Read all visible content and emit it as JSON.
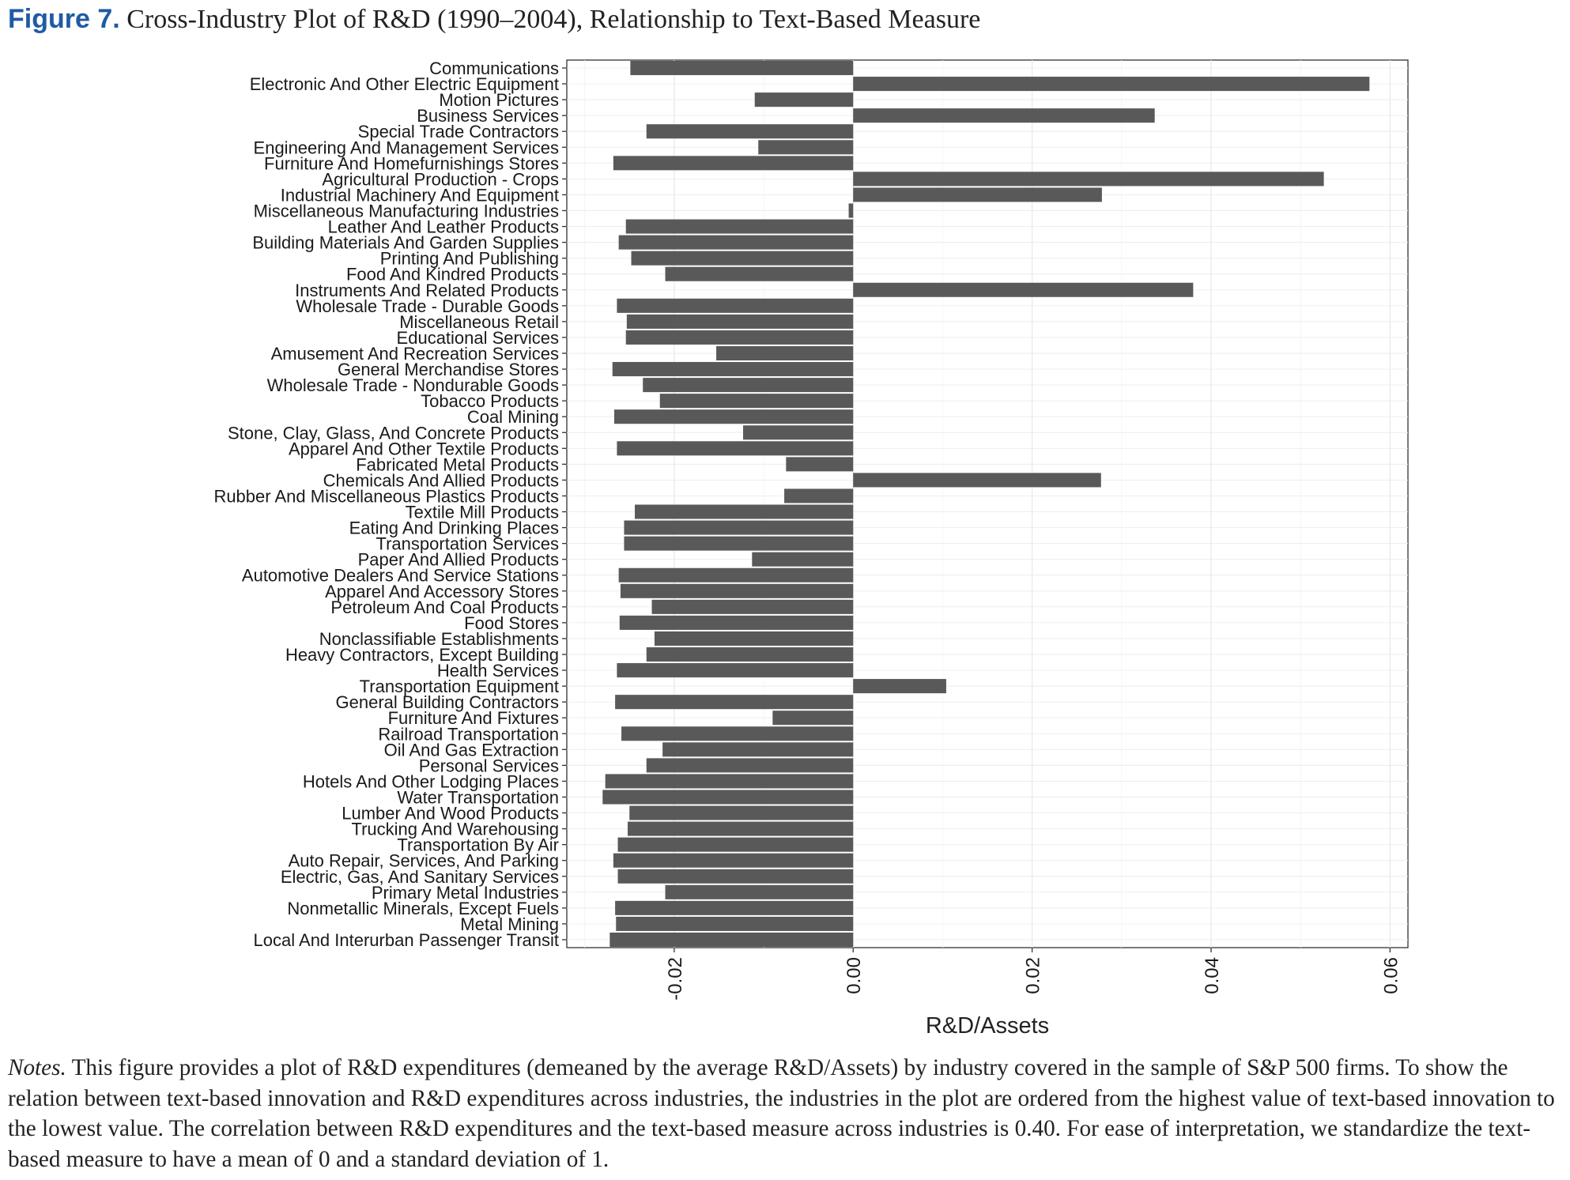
{
  "figure": {
    "label": "Figure 7.",
    "title": "Cross-Industry Plot of R&D (1990–2004), Relationship to Text-Based Measure"
  },
  "notes": {
    "label": "Notes.",
    "text": "This figure provides a plot of R&D expenditures (demeaned by the average R&D/Assets) by industry covered in the sample of S&P 500 firms. To show the relation between text-based innovation and R&D expenditures across industries, the industries in the plot are ordered from the highest value of text-based innovation to the lowest value. The correlation between R&D expenditures and the text-based measure across industries is 0.40. For ease of interpretation, we standardize the text-based measure to have a mean of 0 and a standard deviation of 1."
  },
  "chart_data": {
    "type": "bar",
    "orientation": "horizontal",
    "xlabel": "R&D/Assets",
    "ylabel": "",
    "xlim": [
      -0.032,
      0.062
    ],
    "xticks": [
      -0.02,
      0.0,
      0.02,
      0.04,
      0.06
    ],
    "xtick_labels": [
      "-0.02",
      "0.00",
      "0.02",
      "0.04",
      "0.06"
    ],
    "grid": true,
    "bar_color": "#595959",
    "categories": [
      "Communications",
      "Electronic And Other Electric Equipment",
      "Motion Pictures",
      "Business Services",
      "Special Trade Contractors",
      "Engineering And Management Services",
      "Furniture And Homefurnishings Stores",
      "Agricultural Production - Crops",
      "Industrial Machinery And Equipment",
      "Miscellaneous Manufacturing Industries",
      "Leather And Leather Products",
      "Building Materials And Garden Supplies",
      "Printing And Publishing",
      "Food And Kindred Products",
      "Instruments And Related Products",
      "Wholesale Trade - Durable Goods",
      "Miscellaneous Retail",
      "Educational Services",
      "Amusement And Recreation Services",
      "General Merchandise Stores",
      "Wholesale Trade - Nondurable Goods",
      "Tobacco Products",
      "Coal Mining",
      "Stone, Clay, Glass, And Concrete Products",
      "Apparel And Other Textile Products",
      "Fabricated Metal Products",
      "Chemicals And Allied Products",
      "Rubber And Miscellaneous Plastics Products",
      "Textile Mill Products",
      "Eating And Drinking Places",
      "Transportation Services",
      "Paper And Allied Products",
      "Automotive Dealers And Service Stations",
      "Apparel And Accessory Stores",
      "Petroleum And Coal Products",
      "Food Stores",
      "Nonclassifiable Establishments",
      "Heavy Contractors, Except Building",
      "Health Services",
      "Transportation Equipment",
      "General Building Contractors",
      "Furniture And Fixtures",
      "Railroad Transportation",
      "Oil And Gas Extraction",
      "Personal Services",
      "Hotels And Other Lodging Places",
      "Water Transportation",
      "Lumber And Wood Products",
      "Trucking And Warehousing",
      "Transportation By Air",
      "Auto Repair, Services, And Parking",
      "Electric, Gas, And Sanitary Services",
      "Primary Metal Industries",
      "Nonmetallic Minerals, Except Fuels",
      "Metal Mining",
      "Local And Interurban Passenger Transit"
    ],
    "values": [
      -0.0249,
      0.0577,
      -0.011,
      0.0337,
      -0.0231,
      -0.0106,
      -0.0268,
      0.0526,
      0.0278,
      -0.0005,
      -0.0254,
      -0.0262,
      -0.0248,
      -0.021,
      0.038,
      -0.0264,
      -0.0253,
      -0.0254,
      -0.0153,
      -0.0269,
      -0.0235,
      -0.0216,
      -0.0267,
      -0.0123,
      -0.0264,
      -0.0075,
      0.0277,
      -0.0077,
      -0.0244,
      -0.0256,
      -0.0256,
      -0.0113,
      -0.0262,
      -0.026,
      -0.0225,
      -0.0261,
      -0.0222,
      -0.0231,
      -0.0264,
      0.0104,
      -0.0266,
      -0.009,
      -0.0259,
      -0.0213,
      -0.0231,
      -0.0277,
      -0.028,
      -0.025,
      -0.0252,
      -0.0263,
      -0.0268,
      -0.0263,
      -0.021,
      -0.0266,
      -0.0265,
      -0.0272
    ]
  }
}
